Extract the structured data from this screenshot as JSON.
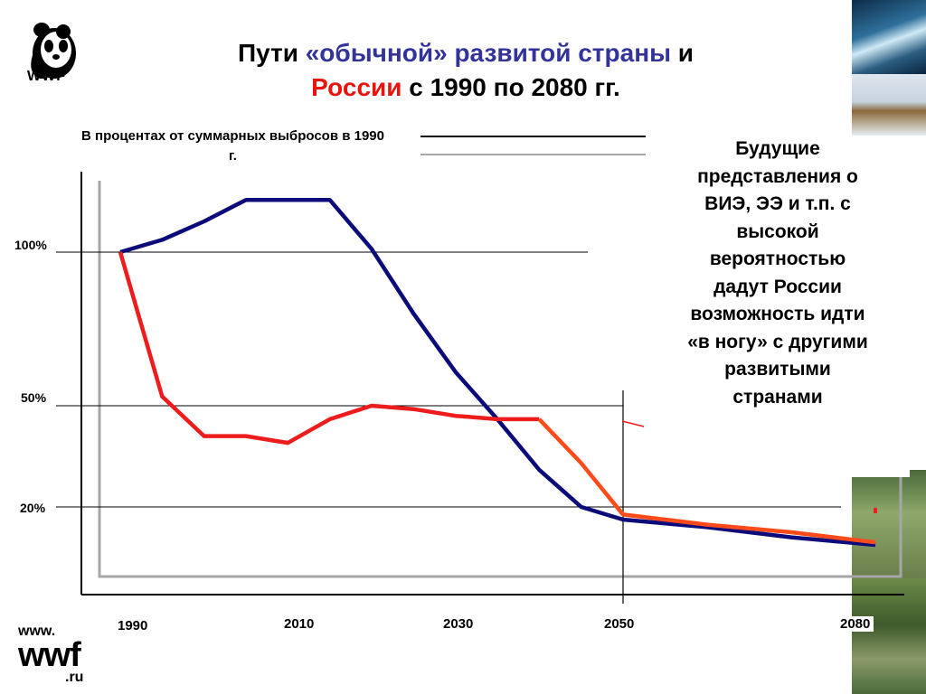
{
  "header": {
    "title_line1_part1": "Пути ",
    "title_line1_part2": "«обычной» развитой страны",
    "title_line1_part3": " и",
    "title_line2_part1": "России",
    "title_line2_part2": " с 1990 по 2080 гг.",
    "logo_text": "WWF"
  },
  "footer": {
    "www": "www.",
    "wwf": "wwf",
    "ru": ".ru"
  },
  "callout": {
    "lines": [
      "Будущие",
      "представления о",
      "ВИЭ, ЭЭ и т.п. с",
      "высокой",
      "вероятностью",
      "дадут России",
      "возможность идти",
      "«в ногу» с другими",
      "развитыми",
      "странами"
    ]
  },
  "colors": {
    "developed": "#0b0b7a",
    "russia": "#ee1c1c",
    "russia_future": "#ff4a1a",
    "title_blue": "#33339a",
    "title_red": "#e8150f"
  },
  "chart_data": {
    "type": "line",
    "ylabel": "В процентах от суммарных выбросов в 1990 г.",
    "x_ticks": [
      "1990",
      "2010",
      "2030",
      "2050",
      "2080"
    ],
    "y_ticks": [
      "100%",
      "50%",
      "20%"
    ],
    "series": [
      {
        "points": [
          [
            1990,
            100
          ],
          [
            1995,
            104
          ],
          [
            2000,
            110
          ],
          [
            2005,
            117
          ],
          [
            2010,
            117
          ],
          [
            2015,
            117
          ],
          [
            2020,
            101
          ],
          [
            2025,
            80
          ],
          [
            2030,
            61
          ],
          [
            2035,
            46
          ],
          [
            2040,
            31
          ],
          [
            2045,
            20
          ],
          [
            2050,
            15
          ],
          [
            2060,
            12
          ],
          [
            2070,
            8
          ],
          [
            2080,
            5
          ]
        ]
      },
      {
        "points": [
          [
            1990,
            100
          ],
          [
            1995,
            53
          ],
          [
            2000,
            41
          ],
          [
            2005,
            41
          ],
          [
            2010,
            39
          ],
          [
            2015,
            46
          ],
          [
            2020,
            50
          ],
          [
            2025,
            49
          ],
          [
            2030,
            47
          ],
          [
            2035,
            46
          ],
          [
            2040,
            46
          ]
        ]
      },
      {
        "points": [
          [
            2040,
            46
          ],
          [
            2045,
            33
          ],
          [
            2050,
            17
          ],
          [
            2060,
            13
          ],
          [
            2070,
            10
          ],
          [
            2080,
            6
          ]
        ]
      }
    ]
  }
}
